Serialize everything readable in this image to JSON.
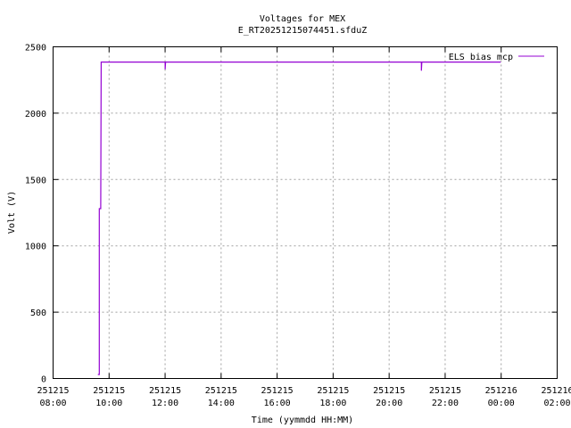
{
  "chart_data": {
    "type": "line",
    "title": "Voltages for MEX",
    "subtitle": "E_RT20251215074451.sfduZ",
    "xlabel": "Time (yymmdd HH:MM)",
    "ylabel": "Volt (V)",
    "xlim": [
      "2025-12-15 08:00",
      "2025-12-16 02:00"
    ],
    "ylim": [
      0,
      2500
    ],
    "grid": true,
    "legend_position": "top-right",
    "x_ticks": [
      {
        "date": "251215",
        "time": "08:00"
      },
      {
        "date": "251215",
        "time": "10:00"
      },
      {
        "date": "251215",
        "time": "12:00"
      },
      {
        "date": "251215",
        "time": "14:00"
      },
      {
        "date": "251215",
        "time": "16:00"
      },
      {
        "date": "251215",
        "time": "18:00"
      },
      {
        "date": "251215",
        "time": "20:00"
      },
      {
        "date": "251215",
        "time": "22:00"
      },
      {
        "date": "251216",
        "time": "00:00"
      },
      {
        "date": "251216",
        "time": "02:00"
      }
    ],
    "y_ticks": [
      "0",
      "500",
      "1000",
      "1500",
      "2000",
      "2500"
    ],
    "series": [
      {
        "name": "ELS bias mcp",
        "color": "#9400d3",
        "x": [
          "2025-12-15 09:36",
          "2025-12-15 09:39",
          "2025-12-15 09:39",
          "2025-12-15 09:42",
          "2025-12-15 09:43",
          "2025-12-15 12:00",
          "2025-12-15 12:00",
          "2025-12-15 12:01",
          "2025-12-15 21:09",
          "2025-12-15 21:09",
          "2025-12-15 21:10",
          "2025-12-15 23:59"
        ],
        "y": [
          30,
          30,
          1280,
          1280,
          2385,
          2385,
          2330,
          2385,
          2385,
          2320,
          2385,
          2385
        ]
      }
    ]
  }
}
